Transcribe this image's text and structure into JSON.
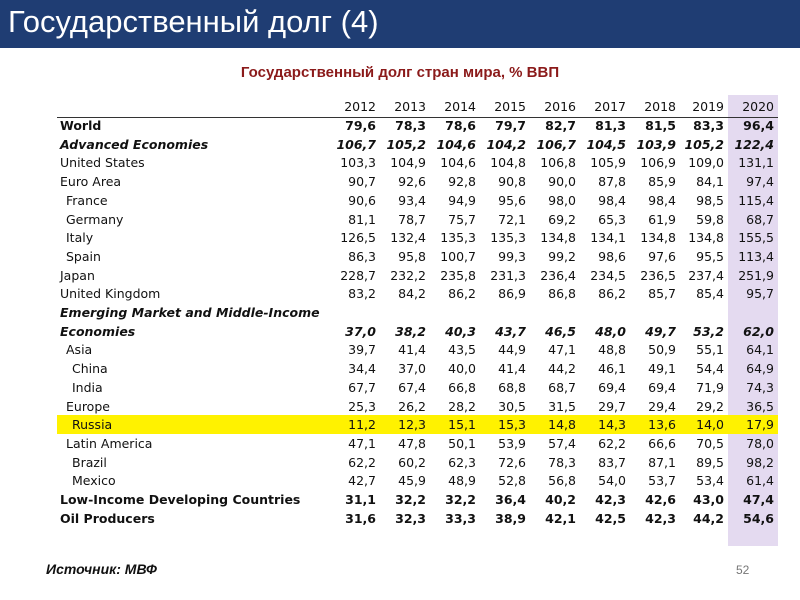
{
  "header": {
    "title": "Государственный долг (4)"
  },
  "subtitle": "Государственный долг стран мира, % ВВП",
  "table": {
    "columns": [
      "2012",
      "2013",
      "2014",
      "2015",
      "2016",
      "2017",
      "2018",
      "2019",
      "2020"
    ],
    "rows": [
      {
        "label": "World",
        "values": [
          "79,6",
          "78,3",
          "78,6",
          "79,7",
          "82,7",
          "81,3",
          "81,5",
          "83,3",
          "96,4"
        ]
      },
      {
        "label": "Advanced Economies",
        "values": [
          "106,7",
          "105,2",
          "104,6",
          "104,2",
          "106,7",
          "104,5",
          "103,9",
          "105,2",
          "122,4"
        ]
      },
      {
        "label": "United States",
        "values": [
          "103,3",
          "104,9",
          "104,6",
          "104,8",
          "106,8",
          "105,9",
          "106,9",
          "109,0",
          "131,1"
        ]
      },
      {
        "label": "Euro Area",
        "values": [
          "90,7",
          "92,6",
          "92,8",
          "90,8",
          "90,0",
          "87,8",
          "85,9",
          "84,1",
          "97,4"
        ]
      },
      {
        "label": "France",
        "values": [
          "90,6",
          "93,4",
          "94,9",
          "95,6",
          "98,0",
          "98,4",
          "98,4",
          "98,5",
          "115,4"
        ]
      },
      {
        "label": "Germany",
        "values": [
          "81,1",
          "78,7",
          "75,7",
          "72,1",
          "69,2",
          "65,3",
          "61,9",
          "59,8",
          "68,7"
        ]
      },
      {
        "label": "Italy",
        "values": [
          "126,5",
          "132,4",
          "135,3",
          "135,3",
          "134,8",
          "134,1",
          "134,8",
          "134,8",
          "155,5"
        ]
      },
      {
        "label": "Spain",
        "values": [
          "86,3",
          "95,8",
          "100,7",
          "99,3",
          "99,2",
          "98,6",
          "97,6",
          "95,5",
          "113,4"
        ]
      },
      {
        "label": "Japan",
        "values": [
          "228,7",
          "232,2",
          "235,8",
          "231,3",
          "236,4",
          "234,5",
          "236,5",
          "237,4",
          "251,9"
        ]
      },
      {
        "label": "United Kingdom",
        "values": [
          "83,2",
          "84,2",
          "86,2",
          "86,9",
          "86,8",
          "86,2",
          "85,7",
          "85,4",
          "95,7"
        ]
      },
      {
        "label": "Emerging Market and Middle-Income"
      },
      {
        "label": "Economies",
        "values": [
          "37,0",
          "38,2",
          "40,3",
          "43,7",
          "46,5",
          "48,0",
          "49,7",
          "53,2",
          "62,0"
        ]
      },
      {
        "label": "Asia",
        "values": [
          "39,7",
          "41,4",
          "43,5",
          "44,9",
          "47,1",
          "48,8",
          "50,9",
          "55,1",
          "64,1"
        ]
      },
      {
        "label": "China",
        "values": [
          "34,4",
          "37,0",
          "40,0",
          "41,4",
          "44,2",
          "46,1",
          "49,1",
          "54,4",
          "64,9"
        ]
      },
      {
        "label": "India",
        "values": [
          "67,7",
          "67,4",
          "66,8",
          "68,8",
          "68,7",
          "69,4",
          "69,4",
          "71,9",
          "74,3"
        ]
      },
      {
        "label": "Europe",
        "values": [
          "25,3",
          "26,2",
          "28,2",
          "30,5",
          "31,5",
          "29,7",
          "29,4",
          "29,2",
          "36,5"
        ]
      },
      {
        "label": "Russia",
        "values": [
          "11,2",
          "12,3",
          "15,1",
          "15,3",
          "14,8",
          "14,3",
          "13,6",
          "14,0",
          "17,9"
        ]
      },
      {
        "label": "Latin America",
        "values": [
          "47,1",
          "47,8",
          "50,1",
          "53,9",
          "57,4",
          "62,2",
          "66,6",
          "70,5",
          "78,0"
        ]
      },
      {
        "label": "Brazil",
        "values": [
          "62,2",
          "60,2",
          "62,3",
          "72,6",
          "78,3",
          "83,7",
          "87,1",
          "89,5",
          "98,2"
        ]
      },
      {
        "label": "Mexico",
        "values": [
          "42,7",
          "45,9",
          "48,9",
          "52,8",
          "56,8",
          "54,0",
          "53,7",
          "53,4",
          "61,4"
        ]
      },
      {
        "label": "Low-Income Developing Countries",
        "values": [
          "31,1",
          "32,2",
          "32,2",
          "36,4",
          "40,2",
          "42,3",
          "42,6",
          "43,0",
          "47,4"
        ]
      },
      {
        "label": "Oil Producers",
        "values": [
          "31,6",
          "32,3",
          "33,3",
          "38,9",
          "42,1",
          "42,5",
          "42,3",
          "44,2",
          "54,6"
        ]
      }
    ]
  },
  "source": "Источник: МВФ",
  "page_number": "52"
}
